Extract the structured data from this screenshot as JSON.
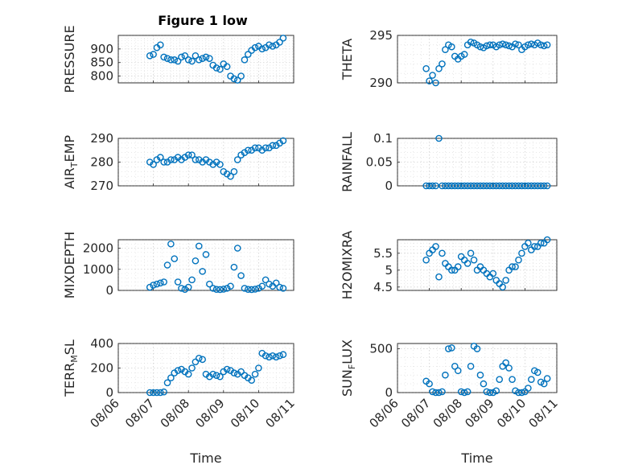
{
  "figure": {
    "title": "Figure 1 low"
  },
  "date_ticks": {
    "days": [
      6,
      7,
      8,
      9,
      10,
      11
    ],
    "labels": [
      "08/06",
      "08/07",
      "08/08",
      "08/09",
      "08/10",
      "08/11"
    ]
  },
  "chart_data": [
    {
      "id": "pressure",
      "type": "scatter",
      "ylabel": "PRESSURE",
      "ylim": [
        775,
        950
      ],
      "yticks": [
        800,
        850,
        900
      ],
      "ytick_labels": [
        "800",
        "850",
        "900"
      ],
      "xlabel": "",
      "show_xticks": false,
      "grid": true,
      "x": [
        "08/06 21:36",
        "08/07 00:00",
        "08/07 02:24",
        "08/07 04:48",
        "08/07 07:12",
        "08/07 09:36",
        "08/07 12:00",
        "08/07 14:24",
        "08/07 16:48",
        "08/07 19:12",
        "08/07 21:36",
        "08/08 00:00",
        "08/08 02:24",
        "08/08 04:48",
        "08/08 07:12",
        "08/08 09:36",
        "08/08 12:00",
        "08/08 14:24",
        "08/08 16:48",
        "08/08 19:12",
        "08/08 21:36",
        "08/09 00:00",
        "08/09 02:24",
        "08/09 04:48",
        "08/09 07:12",
        "08/09 09:36",
        "08/09 12:00",
        "08/09 14:24",
        "08/09 16:48",
        "08/09 19:12",
        "08/09 21:36",
        "08/10 00:00",
        "08/10 02:24",
        "08/10 04:48",
        "08/10 07:12",
        "08/10 09:36",
        "08/10 12:00",
        "08/10 14:24",
        "08/10 16:48"
      ],
      "y": [
        875,
        880,
        905,
        915,
        870,
        865,
        860,
        860,
        855,
        870,
        875,
        860,
        855,
        875,
        860,
        865,
        870,
        865,
        840,
        830,
        825,
        845,
        835,
        800,
        790,
        785,
        800,
        860,
        880,
        895,
        905,
        910,
        900,
        905,
        915,
        910,
        915,
        925,
        940
      ]
    },
    {
      "id": "theta",
      "type": "scatter",
      "ylabel": "THETA",
      "ylim": [
        290,
        295
      ],
      "yticks": [
        290,
        295
      ],
      "ytick_labels": [
        "290",
        "295"
      ],
      "xlabel": "",
      "show_xticks": false,
      "grid": true,
      "x": [
        "08/06 21:36",
        "08/07 00:00",
        "08/07 02:24",
        "08/07 04:48",
        "08/07 07:12",
        "08/07 09:36",
        "08/07 12:00",
        "08/07 14:24",
        "08/07 16:48",
        "08/07 19:12",
        "08/07 21:36",
        "08/08 00:00",
        "08/08 02:24",
        "08/08 04:48",
        "08/08 07:12",
        "08/08 09:36",
        "08/08 12:00",
        "08/08 14:24",
        "08/08 16:48",
        "08/08 19:12",
        "08/08 21:36",
        "08/09 00:00",
        "08/09 02:24",
        "08/09 04:48",
        "08/09 07:12",
        "08/09 09:36",
        "08/09 12:00",
        "08/09 14:24",
        "08/09 16:48",
        "08/09 19:12",
        "08/09 21:36",
        "08/10 00:00",
        "08/10 02:24",
        "08/10 04:48",
        "08/10 07:12",
        "08/10 09:36",
        "08/10 12:00",
        "08/10 14:24",
        "08/10 16:48"
      ],
      "y": [
        291.5,
        290.2,
        290.8,
        290,
        291.5,
        292,
        293.5,
        294,
        293.8,
        292.8,
        292.5,
        292.8,
        293,
        294,
        294.3,
        294.2,
        294,
        293.8,
        293.7,
        293.9,
        294,
        294,
        293.8,
        294,
        294.1,
        294,
        293.9,
        293.8,
        294.1,
        294,
        293.5,
        293.8,
        294,
        294.1,
        294,
        294.2,
        294,
        293.9,
        294
      ]
    },
    {
      "id": "air_temp",
      "type": "scatter",
      "ylabel": "AIR_TEMP",
      "ylabel_main": "AIR",
      "ylabel_sub": "T",
      "ylabel_rest": "EMP",
      "ylim": [
        270,
        290
      ],
      "yticks": [
        270,
        280,
        290
      ],
      "ytick_labels": [
        "270",
        "280",
        "290"
      ],
      "xlabel": "",
      "show_xticks": false,
      "grid": true,
      "x": [
        "08/06 21:36",
        "08/07 00:00",
        "08/07 02:24",
        "08/07 04:48",
        "08/07 07:12",
        "08/07 09:36",
        "08/07 12:00",
        "08/07 14:24",
        "08/07 16:48",
        "08/07 19:12",
        "08/07 21:36",
        "08/08 00:00",
        "08/08 02:24",
        "08/08 04:48",
        "08/08 07:12",
        "08/08 09:36",
        "08/08 12:00",
        "08/08 14:24",
        "08/08 16:48",
        "08/08 19:12",
        "08/08 21:36",
        "08/09 00:00",
        "08/09 02:24",
        "08/09 04:48",
        "08/09 07:12",
        "08/09 09:36",
        "08/09 12:00",
        "08/09 14:24",
        "08/09 16:48",
        "08/09 19:12",
        "08/09 21:36",
        "08/10 00:00",
        "08/10 02:24",
        "08/10 04:48",
        "08/10 07:12",
        "08/10 09:36",
        "08/10 12:00",
        "08/10 14:24",
        "08/10 16:48"
      ],
      "y": [
        280,
        279,
        281,
        282,
        280,
        280,
        281,
        281,
        282,
        281,
        282,
        283,
        283,
        281,
        281,
        280,
        281,
        280,
        279,
        280,
        279,
        276,
        275,
        274,
        276,
        281,
        283,
        284,
        285,
        285,
        286,
        286,
        285,
        286,
        286,
        287,
        287,
        288,
        289
      ]
    },
    {
      "id": "rainfall",
      "type": "scatter",
      "ylabel": "RAINFALL",
      "ylim": [
        0,
        0.1
      ],
      "yticks": [
        0,
        0.05,
        0.1
      ],
      "ytick_labels": [
        "0",
        "0.05",
        "0.1"
      ],
      "xlabel": "",
      "show_xticks": false,
      "grid": true,
      "x": [
        "08/06 21:36",
        "08/07 00:00",
        "08/07 02:24",
        "08/07 04:48",
        "08/07 07:12",
        "08/07 09:36",
        "08/07 12:00",
        "08/07 14:24",
        "08/07 16:48",
        "08/07 19:12",
        "08/07 21:36",
        "08/08 00:00",
        "08/08 02:24",
        "08/08 04:48",
        "08/08 07:12",
        "08/08 09:36",
        "08/08 12:00",
        "08/08 14:24",
        "08/08 16:48",
        "08/08 19:12",
        "08/08 21:36",
        "08/09 00:00",
        "08/09 02:24",
        "08/09 04:48",
        "08/09 07:12",
        "08/09 09:36",
        "08/09 12:00",
        "08/09 14:24",
        "08/09 16:48",
        "08/09 19:12",
        "08/09 21:36",
        "08/10 00:00",
        "08/10 02:24",
        "08/10 04:48",
        "08/10 07:12",
        "08/10 09:36",
        "08/10 12:00",
        "08/10 14:24",
        "08/10 16:48"
      ],
      "y": [
        0,
        0,
        0,
        0,
        0.1,
        0,
        0,
        0,
        0,
        0,
        0,
        0,
        0,
        0,
        0,
        0,
        0,
        0,
        0,
        0,
        0,
        0,
        0,
        0,
        0,
        0,
        0,
        0,
        0,
        0,
        0,
        0,
        0,
        0,
        0,
        0,
        0,
        0,
        0
      ]
    },
    {
      "id": "mixdepth",
      "type": "scatter",
      "ylabel": "MIXDEPTH",
      "ylim": [
        0,
        2400
      ],
      "yticks": [
        0,
        1000,
        2000
      ],
      "ytick_labels": [
        "0",
        "1000",
        "2000"
      ],
      "xlabel": "",
      "show_xticks": false,
      "grid": true,
      "x": [
        "08/06 21:36",
        "08/07 00:00",
        "08/07 02:24",
        "08/07 04:48",
        "08/07 07:12",
        "08/07 09:36",
        "08/07 12:00",
        "08/07 14:24",
        "08/07 16:48",
        "08/07 19:12",
        "08/07 21:36",
        "08/08 00:00",
        "08/08 02:24",
        "08/08 04:48",
        "08/08 07:12",
        "08/08 09:36",
        "08/08 12:00",
        "08/08 14:24",
        "08/08 16:48",
        "08/08 19:12",
        "08/08 21:36",
        "08/09 00:00",
        "08/09 02:24",
        "08/09 04:48",
        "08/09 07:12",
        "08/09 09:36",
        "08/09 12:00",
        "08/09 14:24",
        "08/09 16:48",
        "08/09 19:12",
        "08/09 21:36",
        "08/10 00:00",
        "08/10 02:24",
        "08/10 04:48",
        "08/10 07:12",
        "08/10 09:36",
        "08/10 12:00",
        "08/10 14:24",
        "08/10 16:48"
      ],
      "y": [
        150,
        250,
        300,
        350,
        400,
        1200,
        2200,
        1500,
        400,
        100,
        50,
        150,
        500,
        1400,
        2100,
        900,
        1700,
        300,
        100,
        50,
        40,
        60,
        100,
        200,
        1100,
        2000,
        700,
        100,
        50,
        40,
        60,
        100,
        200,
        500,
        300,
        200,
        350,
        150,
        100
      ]
    },
    {
      "id": "h2omixra",
      "type": "scatter",
      "ylabel": "H2OMIXRA",
      "ylim": [
        4.4,
        5.9
      ],
      "yticks": [
        4.5,
        5,
        5.5
      ],
      "ytick_labels": [
        "4.5",
        "5",
        "5.5"
      ],
      "xlabel": "",
      "show_xticks": false,
      "grid": true,
      "x": [
        "08/06 21:36",
        "08/07 00:00",
        "08/07 02:24",
        "08/07 04:48",
        "08/07 07:12",
        "08/07 09:36",
        "08/07 12:00",
        "08/07 14:24",
        "08/07 16:48",
        "08/07 19:12",
        "08/07 21:36",
        "08/08 00:00",
        "08/08 02:24",
        "08/08 04:48",
        "08/08 07:12",
        "08/08 09:36",
        "08/08 12:00",
        "08/08 14:24",
        "08/08 16:48",
        "08/08 19:12",
        "08/08 21:36",
        "08/09 00:00",
        "08/09 02:24",
        "08/09 04:48",
        "08/09 07:12",
        "08/09 09:36",
        "08/09 12:00",
        "08/09 14:24",
        "08/09 16:48",
        "08/09 19:12",
        "08/09 21:36",
        "08/10 00:00",
        "08/10 02:24",
        "08/10 04:48",
        "08/10 07:12",
        "08/10 09:36",
        "08/10 12:00",
        "08/10 14:24",
        "08/10 16:48"
      ],
      "y": [
        5.3,
        5.5,
        5.6,
        5.7,
        4.8,
        5.5,
        5.2,
        5.1,
        5,
        5,
        5.1,
        5.4,
        5.3,
        5.2,
        5.5,
        5.3,
        5.0,
        5.1,
        5.0,
        4.9,
        4.8,
        4.9,
        4.7,
        4.6,
        4.5,
        4.7,
        5.0,
        5.1,
        5.1,
        5.3,
        5.5,
        5.7,
        5.8,
        5.6,
        5.7,
        5.7,
        5.8,
        5.8,
        5.9
      ]
    },
    {
      "id": "terr_msl",
      "type": "scatter",
      "ylabel": "TERR_MSL",
      "ylabel_main": "TERR",
      "ylabel_sub": "M",
      "ylabel_rest": "SL",
      "ylim": [
        0,
        400
      ],
      "yticks": [
        0,
        200,
        400
      ],
      "ytick_labels": [
        "0",
        "200",
        "400"
      ],
      "xlabel": "Time",
      "show_xticks": true,
      "grid": true,
      "x": [
        "08/06 21:36",
        "08/07 00:00",
        "08/07 02:24",
        "08/07 04:48",
        "08/07 07:12",
        "08/07 09:36",
        "08/07 12:00",
        "08/07 14:24",
        "08/07 16:48",
        "08/07 19:12",
        "08/07 21:36",
        "08/08 00:00",
        "08/08 02:24",
        "08/08 04:48",
        "08/08 07:12",
        "08/08 09:36",
        "08/08 12:00",
        "08/08 14:24",
        "08/08 16:48",
        "08/08 19:12",
        "08/08 21:36",
        "08/09 00:00",
        "08/09 02:24",
        "08/09 04:48",
        "08/09 07:12",
        "08/09 09:36",
        "08/09 12:00",
        "08/09 14:24",
        "08/09 16:48",
        "08/09 19:12",
        "08/09 21:36",
        "08/10 00:00",
        "08/10 02:24",
        "08/10 04:48",
        "08/10 07:12",
        "08/10 09:36",
        "08/10 12:00",
        "08/10 14:24",
        "08/10 16:48"
      ],
      "y": [
        0,
        0,
        0,
        0,
        5,
        80,
        120,
        160,
        180,
        190,
        170,
        150,
        200,
        250,
        280,
        270,
        150,
        130,
        150,
        140,
        130,
        170,
        190,
        180,
        160,
        150,
        170,
        140,
        120,
        100,
        150,
        200,
        320,
        300,
        290,
        300,
        290,
        300,
        310
      ]
    },
    {
      "id": "sun_flux",
      "type": "scatter",
      "ylabel": "SUN_FLUX",
      "ylabel_main": "SUN",
      "ylabel_sub": "F",
      "ylabel_rest": "LUX",
      "ylim": [
        0,
        560
      ],
      "yticks": [
        0,
        500
      ],
      "ytick_labels": [
        "0",
        "500"
      ],
      "xlabel": "Time",
      "show_xticks": true,
      "grid": true,
      "x": [
        "08/06 21:36",
        "08/07 00:00",
        "08/07 02:24",
        "08/07 04:48",
        "08/07 07:12",
        "08/07 09:36",
        "08/07 12:00",
        "08/07 14:24",
        "08/07 16:48",
        "08/07 19:12",
        "08/07 21:36",
        "08/08 00:00",
        "08/08 02:24",
        "08/08 04:48",
        "08/08 07:12",
        "08/08 09:36",
        "08/08 12:00",
        "08/08 14:24",
        "08/08 16:48",
        "08/08 19:12",
        "08/08 21:36",
        "08/09 00:00",
        "08/09 02:24",
        "08/09 04:48",
        "08/09 07:12",
        "08/09 09:36",
        "08/09 12:00",
        "08/09 14:24",
        "08/09 16:48",
        "08/09 19:12",
        "08/09 21:36",
        "08/10 00:00",
        "08/10 02:24",
        "08/10 04:48",
        "08/10 07:12",
        "08/10 09:36",
        "08/10 12:00",
        "08/10 14:24",
        "08/10 16:48"
      ],
      "y": [
        130,
        100,
        10,
        0,
        0,
        10,
        200,
        500,
        510,
        300,
        250,
        10,
        0,
        10,
        300,
        530,
        500,
        200,
        100,
        10,
        0,
        0,
        20,
        150,
        300,
        340,
        280,
        150,
        20,
        0,
        0,
        10,
        50,
        150,
        250,
        230,
        120,
        100,
        160
      ]
    }
  ]
}
